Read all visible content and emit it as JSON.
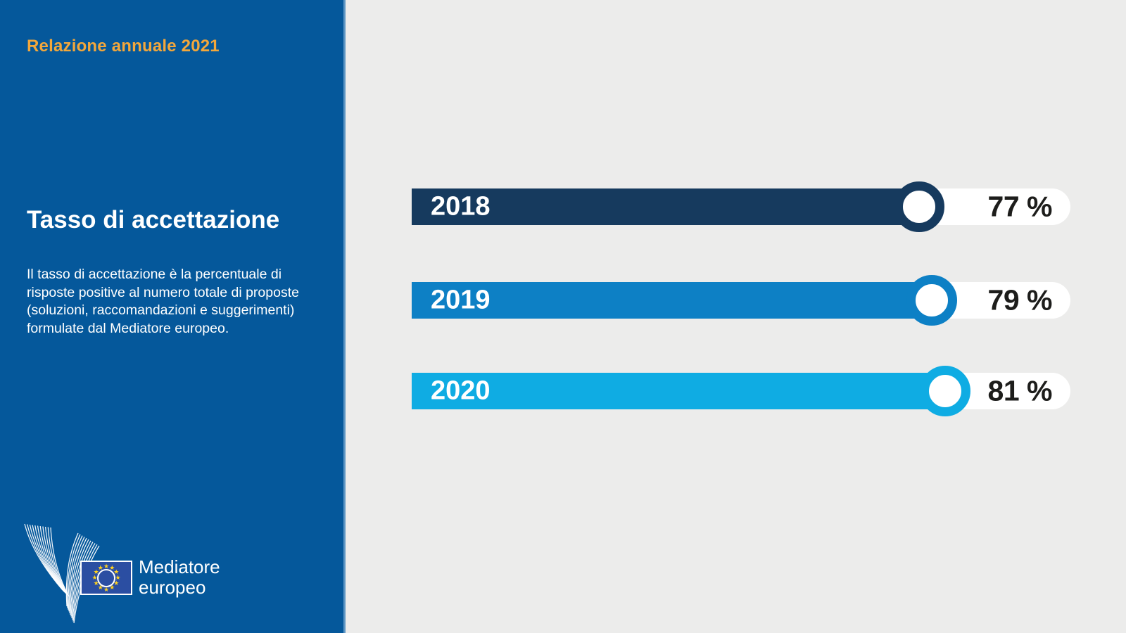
{
  "sidebar": {
    "report_title": "Relazione annuale 2021",
    "heading": "Tasso di accettazione",
    "description": "Il tasso di accettazione è la percentuale di risposte positive al numero totale di proposte (soluzioni, raccomandazioni e suggerimenti) formulate dal Mediatore europeo.",
    "logo": {
      "line1": "Mediatore",
      "line2": "europeo",
      "bird_icon": "ombudsman-bird",
      "flag_icon": "eu-flag"
    }
  },
  "colors": {
    "sidebar_bg": "#05589B",
    "divider": "#5D96C4",
    "content_bg": "#ECECEB",
    "accent_orange": "#F3A73B",
    "value_text": "#1D1D1B",
    "flag_bg": "#2B4EA2",
    "star_color": "#FFD21E"
  },
  "chart_data": {
    "type": "bar",
    "orientation": "horizontal",
    "title": "Tasso di accettazione",
    "categories": [
      "2018",
      "2019",
      "2020"
    ],
    "values": [
      77,
      79,
      81
    ],
    "value_labels": [
      "77 %",
      "79 %",
      "81 %"
    ],
    "bar_colors": [
      "#163A5E",
      "#0D80C5",
      "#0FACE3"
    ],
    "xlim": [
      0,
      100
    ],
    "grid": false,
    "legend": false
  }
}
